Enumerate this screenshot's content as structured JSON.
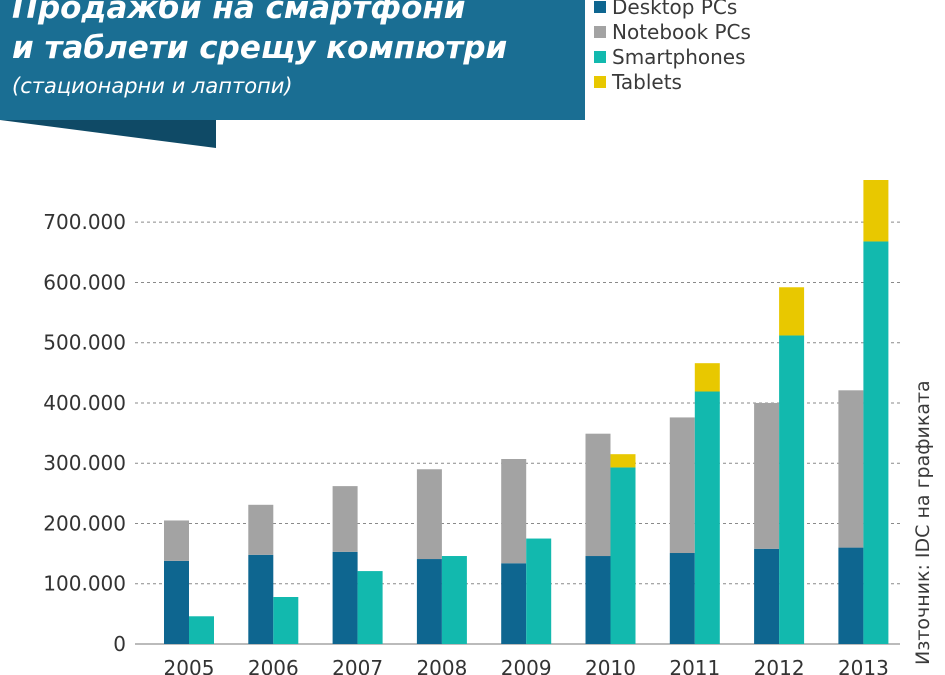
{
  "header": {
    "title": "Продажби на смартфони\nи таблети срещу компютри",
    "subtitle": "(стационарни и лаптопи)"
  },
  "source": "Източник: IDC на графиката",
  "colors": {
    "header_bg": "#1a6e93",
    "desktop": "#0e6690",
    "notebook": "#a3a3a3",
    "smartphones": "#12b9ae",
    "tablets": "#e8c800"
  },
  "chart_data": {
    "type": "bar",
    "stacked": true,
    "categories": [
      "2005",
      "2006",
      "2007",
      "2008",
      "2009",
      "2010",
      "2011",
      "2012",
      "2013"
    ],
    "series": [
      {
        "name": "Desktop PCs",
        "stack": "computers",
        "values": [
          138000,
          148000,
          153000,
          141000,
          134000,
          146000,
          151000,
          158000,
          160000
        ]
      },
      {
        "name": "Notebook PCs",
        "stack": "computers",
        "values": [
          67000,
          83000,
          109000,
          149000,
          173000,
          203000,
          225000,
          242000,
          261000
        ]
      },
      {
        "name": "Smartphones",
        "stack": "mobile",
        "values": [
          46000,
          78000,
          121000,
          146000,
          175000,
          293000,
          419000,
          512000,
          668000
        ]
      },
      {
        "name": "Tablets",
        "stack": "mobile",
        "values": [
          0,
          0,
          0,
          0,
          0,
          22000,
          47000,
          80000,
          102000
        ]
      }
    ],
    "yticks": [
      "0",
      "100.000",
      "200.000",
      "300.000",
      "400.000",
      "500.000",
      "600.000",
      "700.000"
    ],
    "ylim": [
      0,
      770000
    ],
    "grid": "dashed horizontal",
    "legend": "top-right"
  }
}
